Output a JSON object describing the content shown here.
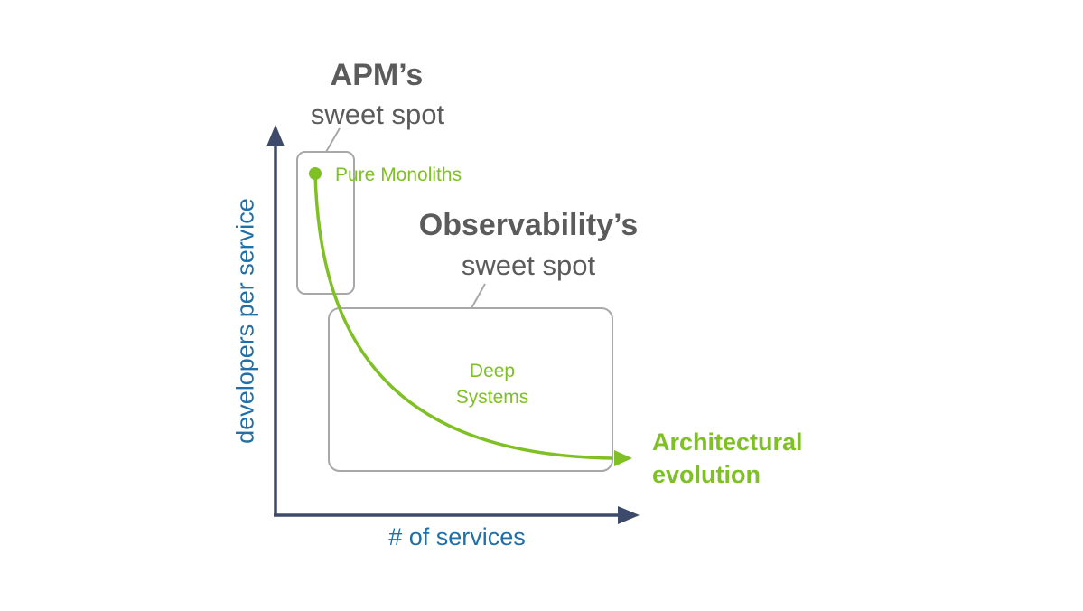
{
  "colors": {
    "axis": "#3d4a6b",
    "axis_label": "#1f6fa8",
    "curve": "#7fc025",
    "region_border": "#a8a8a8",
    "title_text": "#5b5b5b"
  },
  "axes": {
    "x_label": "# of services",
    "y_label": "developers per service"
  },
  "regions": {
    "apm": {
      "title_bold": "APM’s",
      "title_light": "sweet spot",
      "inner_label": "Pure Monoliths"
    },
    "observability": {
      "title_bold": "Observability’s",
      "title_light": "sweet spot",
      "inner_label_line1": "Deep",
      "inner_label_line2": "Systems"
    }
  },
  "curve": {
    "label_line1": "Architectural",
    "label_line2": "evolution"
  }
}
